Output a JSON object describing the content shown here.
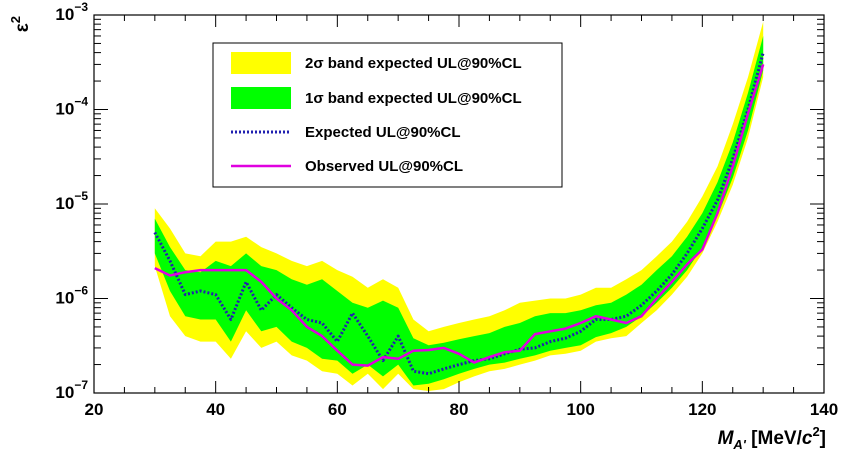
{
  "chart_data": {
    "type": "line",
    "title": "",
    "xlabel": "M_{A'} [MeV/c^2]",
    "xlabel_parts": {
      "main": "M",
      "sub": "A'",
      "unit_pre": " [MeV/",
      "unit_c": "c",
      "unit_pow": "2",
      "unit_post": "]"
    },
    "ylabel": "ε^2",
    "ylabel_parts": {
      "main": "ε",
      "sup": "2"
    },
    "xlim": [
      20,
      140
    ],
    "ylim": [
      1e-07,
      0.001
    ],
    "yscale": "log",
    "x_ticks": [
      20,
      40,
      60,
      80,
      100,
      120,
      140
    ],
    "x_tick_labels": [
      "20",
      "40",
      "60",
      "80",
      "100",
      "120",
      "140"
    ],
    "y_tick_labels": [
      {
        "value": 1e-07,
        "base": "10",
        "exp": "−7"
      },
      {
        "value": 1e-06,
        "base": "10",
        "exp": "−6"
      },
      {
        "value": 1e-05,
        "base": "10",
        "exp": "−5"
      },
      {
        "value": 0.0001,
        "base": "10",
        "exp": "−4"
      },
      {
        "value": 0.001,
        "base": "10",
        "exp": "−3"
      }
    ],
    "grid": false,
    "legend_position": "top-center",
    "x": [
      30,
      32.5,
      35,
      37.5,
      40,
      42.5,
      45,
      47.5,
      50,
      52.5,
      55,
      57.5,
      60,
      62.5,
      65,
      67.5,
      70,
      72.5,
      75,
      77.5,
      80,
      82.5,
      85,
      87.5,
      90,
      92.5,
      95,
      97.5,
      100,
      102.5,
      105,
      107.5,
      110,
      112.5,
      115,
      117.5,
      120,
      122.5,
      125,
      127.5,
      130
    ],
    "series": [
      {
        "name": "2σ band expected UL@90%CL",
        "kind": "band",
        "color": "#ffff00",
        "lower": [
          2.2e-06,
          6.5e-07,
          4e-07,
          3.5e-07,
          3.5e-07,
          2.3e-07,
          4.5e-07,
          3e-07,
          3.5e-07,
          2.5e-07,
          2.2e-07,
          1.7e-07,
          1.6e-07,
          1.2e-07,
          1.6e-07,
          1.1e-07,
          1.6e-07,
          1.1e-07,
          1.05e-07,
          1.1e-07,
          1.3e-07,
          1.5e-07,
          1.7e-07,
          1.8e-07,
          2e-07,
          2.2e-07,
          2.5e-07,
          2.6e-07,
          2.8e-07,
          3.5e-07,
          3.8e-07,
          4e-07,
          5.5e-07,
          7.5e-07,
          1.1e-06,
          1.7e-06,
          3e-06,
          6.5e-06,
          1.6e-05,
          5e-05,
          0.00022
        ],
        "upper": [
          9e-06,
          5.5e-06,
          3e-06,
          2.8e-06,
          4e-06,
          4e-06,
          4.5e-06,
          3.5e-06,
          3e-06,
          2.5e-06,
          2.2e-06,
          2.5e-06,
          2e-06,
          1.7e-06,
          1.3e-06,
          1.6e-06,
          1.3e-06,
          6e-07,
          4.5e-07,
          5e-07,
          5.5e-07,
          6e-07,
          6.5e-07,
          7.5e-07,
          9e-07,
          9.5e-07,
          1e-06,
          1e-06,
          1.1e-06,
          1.3e-06,
          1.3e-06,
          1.6e-06,
          2e-06,
          2.8e-06,
          4e-06,
          6.5e-06,
          1.2e-05,
          2.5e-05,
          7e-05,
          0.00022,
          0.00085
        ]
      },
      {
        "name": "1σ band expected UL@90%CL",
        "kind": "band",
        "color": "#00ff00",
        "lower": [
          3e-06,
          1.2e-06,
          6.5e-07,
          6e-07,
          6e-07,
          3.5e-07,
          7.5e-07,
          4.5e-07,
          5e-07,
          3.5e-07,
          3e-07,
          2.3e-07,
          2.2e-07,
          1.6e-07,
          2e-07,
          1.5e-07,
          2e-07,
          1.2e-07,
          1.25e-07,
          1.4e-07,
          1.6e-07,
          1.8e-07,
          2e-07,
          2.1e-07,
          2.3e-07,
          2.5e-07,
          2.8e-07,
          3e-07,
          3.2e-07,
          3.9e-07,
          4.3e-07,
          5e-07,
          6.5e-07,
          9e-07,
          1.3e-06,
          2e-06,
          3.5e-06,
          7.5e-06,
          1.9e-05,
          6e-05,
          0.00026
        ],
        "upper": [
          7e-06,
          3.5e-06,
          2e-06,
          1.9e-06,
          2.5e-06,
          2.2e-06,
          3e-06,
          2.2e-06,
          2e-06,
          1.6e-06,
          1.4e-06,
          1.6e-06,
          1.2e-06,
          9e-07,
          8e-07,
          9.5e-07,
          8e-07,
          3.8e-07,
          3.2e-07,
          3.4e-07,
          3.7e-07,
          4e-07,
          4.3e-07,
          5e-07,
          5.5e-07,
          6.5e-07,
          7e-07,
          7e-07,
          7.5e-07,
          8.5e-07,
          9e-07,
          1.1e-06,
          1.4e-06,
          2e-06,
          2.8e-06,
          4.5e-06,
          8e-06,
          1.7e-05,
          4.5e-05,
          0.00015,
          0.0006
        ]
      },
      {
        "name": "Expected UL@90%CL",
        "kind": "dotted-line",
        "color": "#2020b0",
        "values": [
          5e-06,
          2.5e-06,
          1.1e-06,
          1.2e-06,
          1.1e-06,
          6e-07,
          1.5e-06,
          7.5e-07,
          1.1e-06,
          8e-07,
          6e-07,
          5.5e-07,
          3.5e-07,
          7e-07,
          4e-07,
          2.2e-07,
          4e-07,
          1.7e-07,
          1.6e-07,
          1.8e-07,
          2e-07,
          2.2e-07,
          2.3e-07,
          2.6e-07,
          2.9e-07,
          3e-07,
          3.5e-07,
          3.8e-07,
          4.5e-07,
          6e-07,
          6e-07,
          6.5e-07,
          8.5e-07,
          1.2e-06,
          1.8e-06,
          3e-06,
          5.5e-06,
          1.1e-05,
          3e-05,
          0.0001,
          0.0004
        ]
      },
      {
        "name": "Observed UL@90%CL",
        "kind": "line",
        "color": "#e000e0",
        "values": [
          2.1e-06,
          1.75e-06,
          1.9e-06,
          2e-06,
          2e-06,
          2e-06,
          2e-06,
          1.5e-06,
          1e-06,
          7.5e-07,
          5e-07,
          4e-07,
          2.8e-07,
          2e-07,
          1.95e-07,
          2.4e-07,
          2.3e-07,
          2.8e-07,
          2.85e-07,
          3e-07,
          2.6e-07,
          2.1e-07,
          2.4e-07,
          2.7e-07,
          2.8e-07,
          4.2e-07,
          4.5e-07,
          4.8e-07,
          5.5e-07,
          6.5e-07,
          6e-07,
          5.5e-07,
          6.5e-07,
          1e-06,
          1.5e-06,
          2.3e-06,
          3.3e-06,
          8e-06,
          2.5e-05,
          9e-05,
          0.0003
        ]
      }
    ]
  }
}
